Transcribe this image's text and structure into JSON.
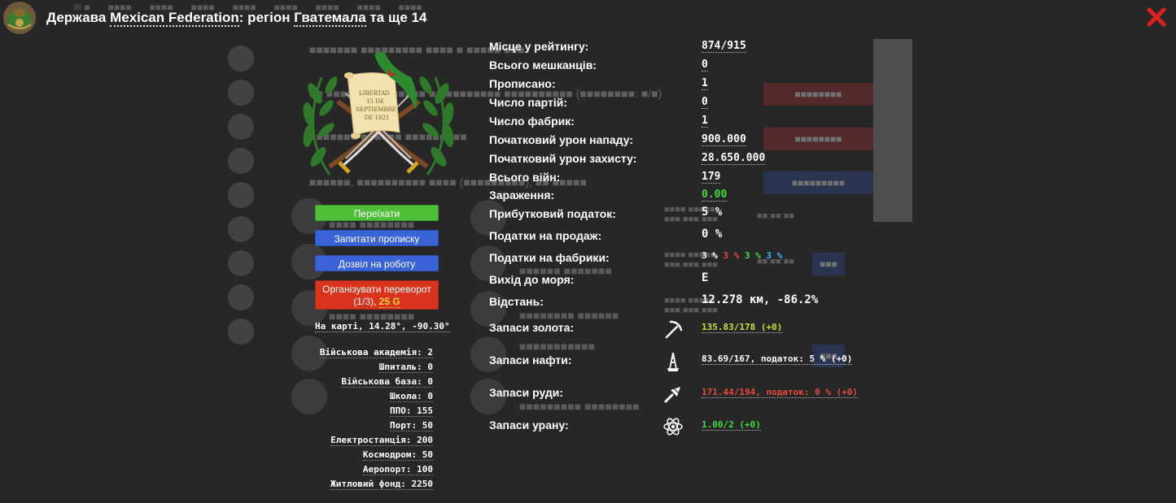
{
  "header": {
    "title_prefix": "Держава",
    "state_name": "Mexican Federation",
    "title_mid": ": регіон",
    "region_name": "Гватемала",
    "title_suffix": "та ще 14"
  },
  "actions": {
    "move": "Переїхати",
    "residency": "Запитати прописку",
    "work_permit": "Дозвіл на роботу",
    "coup_line1": "Організувати переворот",
    "coup_line2": "(1/3),",
    "coup_price": "25 G"
  },
  "coat_text": {
    "l1": "LIBERTAD",
    "l2": "15 DE",
    "l3": "SEPTIEMBRE",
    "l4": "DE 1821"
  },
  "map_coords": "На карті, 14.28°, -90.30°",
  "buildings": [
    "Військова академія: 2",
    "Шпиталь: 0",
    "Військова база: 0",
    "Школа: 0",
    "ППО: 155",
    "Порт: 50",
    "Електростанція: 200",
    "Космодром: 50",
    "Аеропорт: 100",
    "Житловий фонд: 2250"
  ],
  "stats": {
    "rank_label": "Місце у рейтингу:",
    "rank": "874/915",
    "residents_label": "Всього мешканців:",
    "residents": "0",
    "registered_label": "Прописано:",
    "registered": "1",
    "parties_label": "Число партій:",
    "parties": "0",
    "factories_label": "Число фабрик:",
    "factories": "1",
    "attack_label": "Початковий урон нападу:",
    "attack": "900.000",
    "defense_label": "Початковий урон захисту:",
    "defense": "28.650.000",
    "wars_label": "Всього війн:",
    "wars": "179",
    "pollution_label": "Зараження:",
    "pollution": "0.00",
    "income_tax_label": "Прибутковий податок:",
    "income_tax": "5 %",
    "sales_tax_label": "Податки на продаж:",
    "sales_tax": "0 %",
    "factory_tax_label": "Податки на фабрики:",
    "factory_tax_1": "3 %",
    "factory_tax_2": "3 %",
    "factory_tax_3": "3 %",
    "factory_tax_4": "3 %",
    "sea_label": "Вихід до моря:",
    "sea": "Е",
    "distance_label": "Відстань:",
    "distance": "12.278 км, -86.2%",
    "gold_label": "Запаси золота:",
    "gold": "135.83/178 (+0)",
    "oil_label": "Запаси нафти:",
    "oil": "83.69/167, податок: 5 % (+0)",
    "ore_label": "Запаси руди:",
    "ore": "171.44/194, податок: 0 % (+0)",
    "uranium_label": "Запаси урану:",
    "uranium": "1.00/2 (+0)"
  },
  "colors": {
    "background": "#262626",
    "green_button": "#4fbf3a",
    "blue_button": "#3a63d8",
    "red_button": "#d9341e",
    "price_yellow": "#f5d43c",
    "green_value": "#3ddc3a",
    "red_value": "#e84a3a",
    "cyan_value": "#35b7ff",
    "gold_value": "#c9e03a",
    "close_red": "#e01f1f"
  },
  "icons": {
    "close": "close-icon",
    "gold": "pickaxe-icon",
    "oil": "oil-derrick-icon",
    "ore": "ore-drill-icon",
    "uranium": "atom-icon"
  }
}
